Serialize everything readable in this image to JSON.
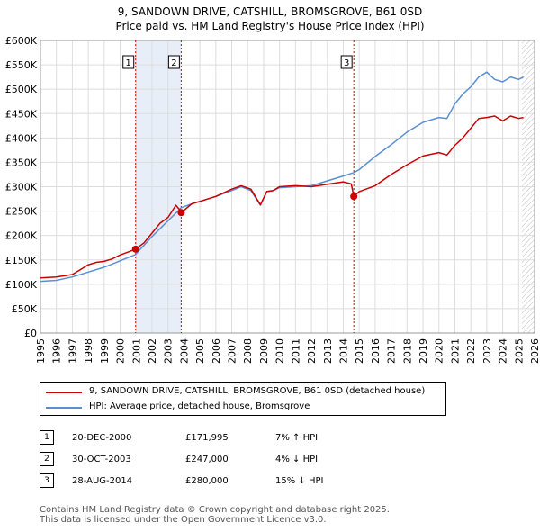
{
  "title_line1": "9, SANDOWN DRIVE, CATSHILL, BROMSGROVE, B61 0SD",
  "title_line2": "Price paid vs. HM Land Registry's House Price Index (HPI)",
  "legend": {
    "property": "9, SANDOWN DRIVE, CATSHILL, BROMSGROVE, B61 0SD (detached house)",
    "hpi": "HPI: Average price, detached house, Bromsgrove"
  },
  "colors": {
    "property": "#cc0000",
    "hpi": "#5b8fd4",
    "shade": "#e8eef8",
    "marker": "#cc0000"
  },
  "sales": [
    {
      "num": "1",
      "date": "20-DEC-2000",
      "price": "£171,995",
      "hpi": "7% ↑ HPI",
      "x": 2000.97,
      "y": 171995
    },
    {
      "num": "2",
      "date": "30-OCT-2003",
      "price": "£247,000",
      "hpi": "4% ↓ HPI",
      "x": 2003.83,
      "y": 247000
    },
    {
      "num": "3",
      "date": "28-AUG-2014",
      "price": "£280,000",
      "hpi": "15% ↓ HPI",
      "x": 2014.66,
      "y": 280000
    }
  ],
  "footer": {
    "line1": "Contains HM Land Registry data © Crown copyright and database right 2025.",
    "line2": "This data is licensed under the Open Government Licence v3.0."
  },
  "chart_data": {
    "type": "line",
    "title": "9, SANDOWN DRIVE, CATSHILL, BROMSGROVE, B61 0SD — Price paid vs. HM Land Registry's House Price Index (HPI)",
    "xlim": [
      1995,
      2026
    ],
    "ylim": [
      0,
      600000
    ],
    "x_ticks": [
      "1995",
      "1996",
      "1997",
      "1998",
      "1999",
      "2000",
      "2001",
      "2002",
      "2003",
      "2004",
      "2005",
      "2006",
      "2007",
      "2008",
      "2009",
      "2010",
      "2011",
      "2012",
      "2013",
      "2014",
      "2015",
      "2016",
      "2017",
      "2018",
      "2019",
      "2020",
      "2021",
      "2022",
      "2023",
      "2024",
      "2025",
      "2026"
    ],
    "y_ticks": [
      {
        "v": 0,
        "label": "£0"
      },
      {
        "v": 50000,
        "label": "£50K"
      },
      {
        "v": 100000,
        "label": "£100K"
      },
      {
        "v": 150000,
        "label": "£150K"
      },
      {
        "v": 200000,
        "label": "£200K"
      },
      {
        "v": 250000,
        "label": "£250K"
      },
      {
        "v": 300000,
        "label": "£300K"
      },
      {
        "v": 350000,
        "label": "£350K"
      },
      {
        "v": 400000,
        "label": "£400K"
      },
      {
        "v": 450000,
        "label": "£450K"
      },
      {
        "v": 500000,
        "label": "£500K"
      },
      {
        "v": 550000,
        "label": "£550K"
      },
      {
        "v": 600000,
        "label": "£600K"
      }
    ],
    "grid": true,
    "future_hatch_from": 2025.2,
    "series": [
      {
        "name": "9, SANDOWN DRIVE, CATSHILL, BROMSGROVE, B61 0SD (detached house)",
        "x": [
          1995.0,
          1996.0,
          1997.0,
          1997.5,
          1998.0,
          1998.5,
          1999.0,
          1999.5,
          2000.0,
          2000.5,
          2000.97,
          2001.5,
          2002.0,
          2002.5,
          2003.0,
          2003.5,
          2003.75,
          2003.83,
          2004.5,
          2005.0,
          2006.0,
          2007.0,
          2007.6,
          2008.2,
          2008.8,
          2009.2,
          2009.6,
          2010.0,
          2011.0,
          2012.0,
          2013.0,
          2014.0,
          2014.5,
          2014.66,
          2015.0,
          2016.0,
          2017.0,
          2018.0,
          2019.0,
          2020.0,
          2020.5,
          2021.0,
          2021.5,
          2022.0,
          2022.5,
          2023.0,
          2023.5,
          2024.0,
          2024.5,
          2025.0,
          2025.3
        ],
        "values": [
          113000,
          115000,
          120000,
          130000,
          140000,
          145000,
          147000,
          152000,
          160000,
          166000,
          171995,
          185000,
          205000,
          225000,
          237000,
          262000,
          252000,
          247000,
          265000,
          270000,
          280000,
          295000,
          302000,
          295000,
          263000,
          290000,
          292000,
          300000,
          302000,
          300000,
          305000,
          310000,
          306000,
          280000,
          290000,
          302000,
          325000,
          345000,
          363000,
          370000,
          365000,
          385000,
          400000,
          420000,
          440000,
          442000,
          445000,
          435000,
          445000,
          440000,
          442000
        ]
      },
      {
        "name": "HPI: Average price, detached house, Bromsgrove",
        "x": [
          1995.0,
          1996.0,
          1997.0,
          1998.0,
          1999.0,
          2000.0,
          2000.97,
          2002.0,
          2003.0,
          2003.83,
          2004.5,
          2005.0,
          2006.0,
          2007.0,
          2007.6,
          2008.2,
          2008.8,
          2009.2,
          2009.6,
          2010.0,
          2011.0,
          2012.0,
          2013.0,
          2014.0,
          2014.66,
          2015.0,
          2016.0,
          2017.0,
          2018.0,
          2019.0,
          2020.0,
          2020.5,
          2021.0,
          2021.5,
          2022.0,
          2022.5,
          2023.0,
          2023.5,
          2024.0,
          2024.5,
          2025.0,
          2025.3
        ],
        "values": [
          106000,
          108000,
          115000,
          125000,
          135000,
          148000,
          161000,
          198000,
          230000,
          257000,
          265000,
          270000,
          280000,
          292000,
          300000,
          292000,
          262000,
          290000,
          292000,
          298000,
          300000,
          302000,
          312000,
          322000,
          329000,
          335000,
          362000,
          386000,
          412000,
          432000,
          442000,
          440000,
          470000,
          490000,
          505000,
          525000,
          535000,
          520000,
          515000,
          525000,
          520000,
          525000
        ]
      }
    ],
    "annotations": [
      {
        "label": "1",
        "x": 2000.97
      },
      {
        "label": "2",
        "x": 2003.83
      },
      {
        "label": "3",
        "x": 2014.66
      }
    ]
  }
}
